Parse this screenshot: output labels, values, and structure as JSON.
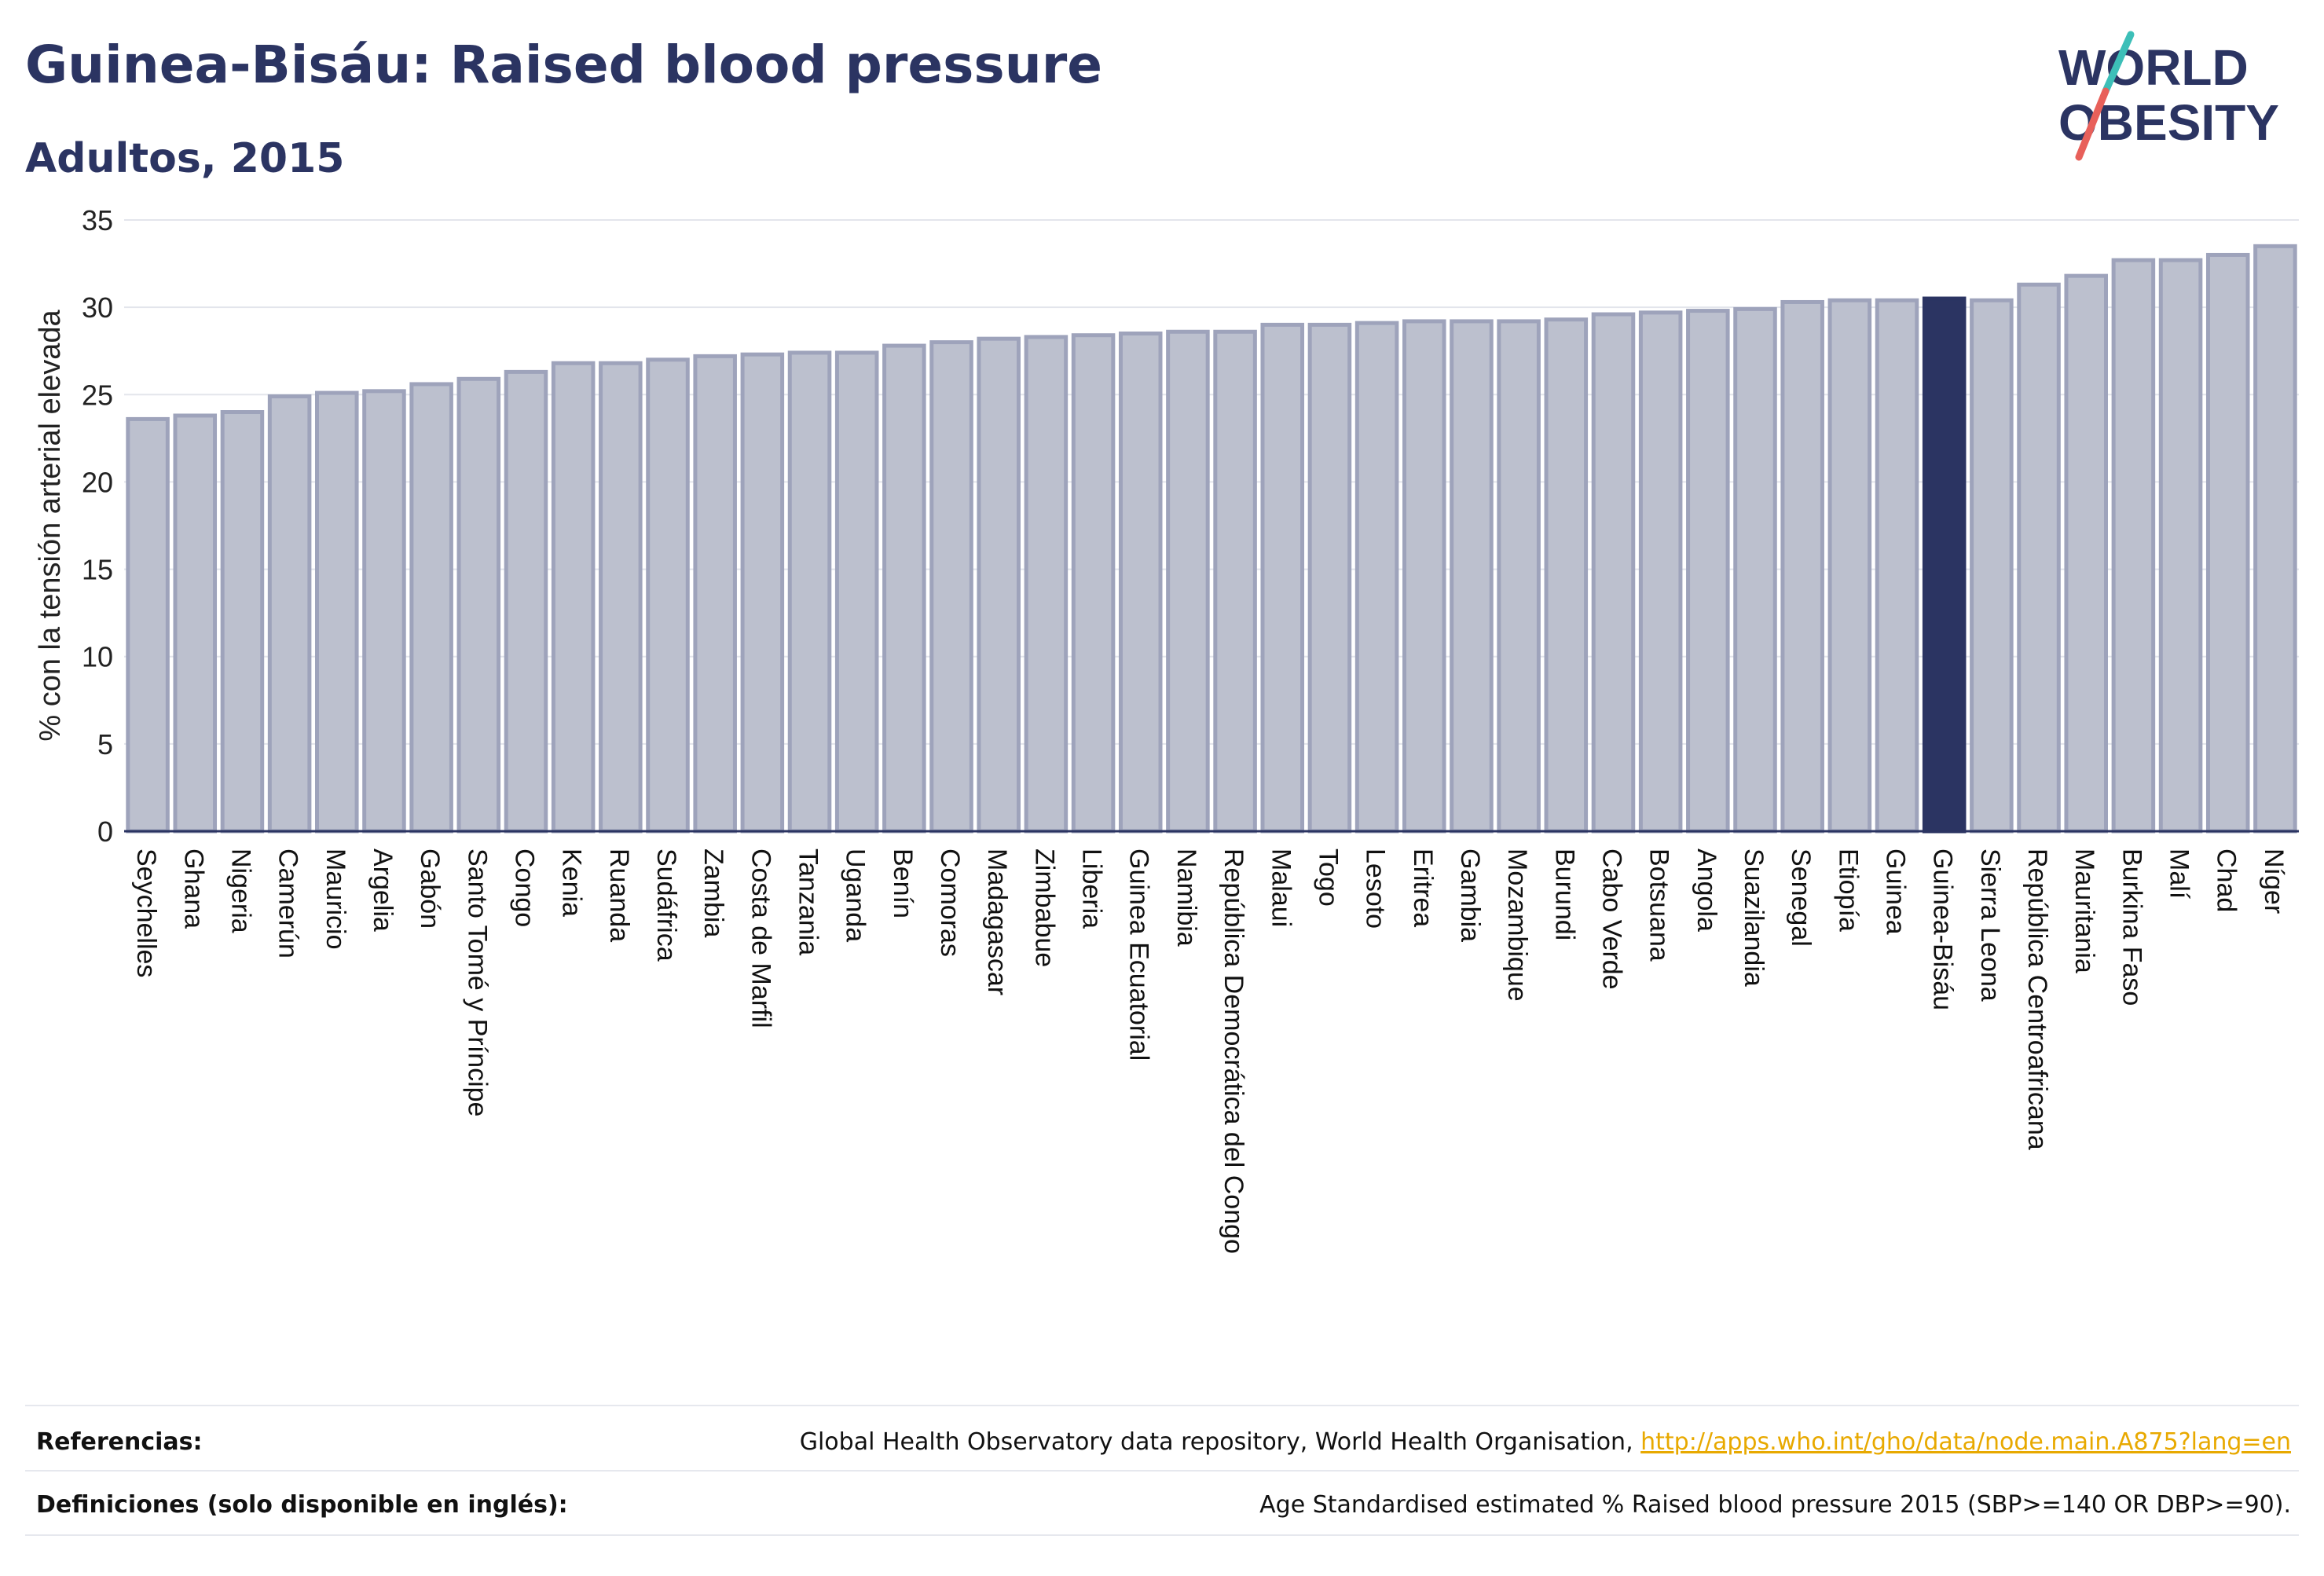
{
  "header": {
    "title": "Guinea-Bisáu: Raised blood pressure",
    "subtitle": "Adultos, 2015"
  },
  "logo": {
    "line1": "WORLD",
    "line2": "OBESITY",
    "text_color": "#2b3462",
    "slash_color_top": "#3dbfb8",
    "slash_color_bottom": "#e8605a"
  },
  "colors": {
    "bar_fill": "#bcc0ce",
    "bar_stroke": "#9ea3bb",
    "highlight_fill": "#2b3462",
    "grid": "#e3e5ec",
    "axis": "#2b3462"
  },
  "chart_data": {
    "type": "bar",
    "ylabel": "% con la tensión arterial elevada",
    "xlabel": "",
    "ylim": [
      0,
      35
    ],
    "yticks": [
      0,
      5,
      10,
      15,
      20,
      25,
      30,
      35
    ],
    "grid": true,
    "highlight": "Guinea-Bisáu",
    "categories": [
      "Seychelles",
      "Ghana",
      "Nigeria",
      "Camerún",
      "Mauricio",
      "Argelia",
      "Gabón",
      "Santo Tomé y Príncipe",
      "Congo",
      "Kenia",
      "Ruanda",
      "Sudáfrica",
      "Zambia",
      "Costa de Marfil",
      "Tanzania",
      "Uganda",
      "Benín",
      "Comoras",
      "Madagascar",
      "Zimbabue",
      "Liberia",
      "Guinea Ecuatorial",
      "Namibia",
      "República Democrática del Congo",
      "Malaui",
      "Togo",
      "Lesoto",
      "Eritrea",
      "Gambia",
      "Mozambique",
      "Burundi",
      "Cabo Verde",
      "Botsuana",
      "Angola",
      "Suazilandia",
      "Senegal",
      "Etiopía",
      "Guinea",
      "Guinea-Bisáu",
      "Sierra Leona",
      "República Centroafricana",
      "Mauritania",
      "Burkina Faso",
      "Malí",
      "Chad",
      "Níger"
    ],
    "values": [
      23.6,
      23.8,
      24.0,
      24.9,
      25.1,
      25.2,
      25.6,
      25.9,
      26.3,
      26.8,
      26.8,
      27.0,
      27.2,
      27.3,
      27.4,
      27.4,
      27.8,
      28.0,
      28.2,
      28.3,
      28.4,
      28.5,
      28.6,
      28.6,
      29.0,
      29.0,
      29.1,
      29.2,
      29.2,
      29.2,
      29.3,
      29.6,
      29.7,
      29.8,
      29.9,
      30.3,
      30.4,
      30.4,
      30.5,
      30.4,
      31.3,
      31.8,
      32.7,
      32.7,
      33.0,
      33.5
    ]
  },
  "footer": {
    "references_label": "Referencias:",
    "references_text": "Global Health Observatory data repository, World Health Organisation, ",
    "references_link": "http://apps.who.int/gho/data/node.main.A875?lang=en",
    "definitions_label": "Definiciones (solo disponible en inglés):",
    "definitions_text": "Age Standardised estimated % Raised blood pressure 2015 (SBP>=140 OR DBP>=90)."
  }
}
